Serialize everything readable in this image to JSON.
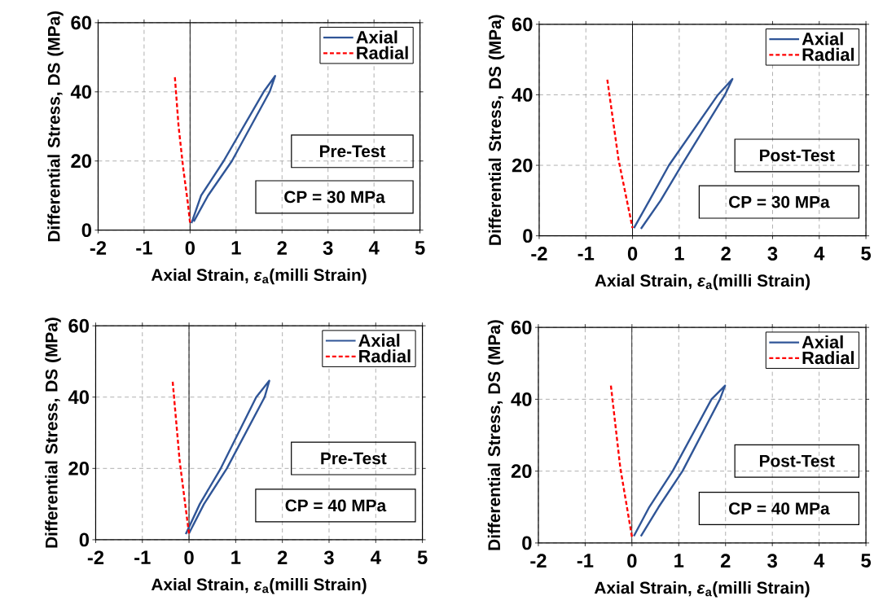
{
  "chart_data": [
    {
      "type": "line",
      "xlabel": "Axial Strain, *ε*$_{a}$(milli Strain)",
      "ylabel": "Differential Stress, DS (MPa)",
      "xlim": [
        -2,
        5
      ],
      "ylim": [
        0,
        60
      ],
      "xticks": [
        -2,
        -1,
        0,
        1,
        2,
        3,
        4,
        5
      ],
      "yticks": [
        0,
        20,
        40,
        60
      ],
      "grid": true,
      "legend": "top right",
      "annotations": [
        "Pre-Test",
        "CP = 30 MPa"
      ],
      "ref_lines": [
        {
          "axis": "x",
          "value": 0,
          "color": "#000000"
        }
      ],
      "series": [
        {
          "name": "Axial",
          "color": "#2f5597",
          "line_style": "solid",
          "x": [
            0.03,
            0.24,
            0.73,
            1.6,
            1.85,
            1.73,
            0.91,
            0.39,
            0.08
          ],
          "values": [
            2,
            10,
            20,
            40,
            44.6,
            40,
            20,
            10,
            2.5
          ]
        },
        {
          "name": "Radial",
          "color": "#ff0000",
          "line_style": "dashed",
          "x": [
            -0.33,
            -0.25,
            -0.15,
            -0.05,
            0
          ],
          "values": [
            44.2,
            30,
            18,
            8,
            2
          ]
        }
      ]
    },
    {
      "type": "line",
      "xlabel": "Axial Strain, *ε*$_{a}$(milli Strain)",
      "ylabel": "Differential Stress, DS (MPa)",
      "xlim": [
        -2,
        5
      ],
      "ylim": [
        0,
        60
      ],
      "xticks": [
        -2,
        -1,
        0,
        1,
        2,
        3,
        4,
        5
      ],
      "yticks": [
        0,
        20,
        40,
        60
      ],
      "grid": true,
      "legend": "top right",
      "annotations": [
        "Post-Test",
        "CP = 30 MPa"
      ],
      "ref_lines": [
        {
          "axis": "x",
          "value": 0,
          "color": "#000000"
        }
      ],
      "series": [
        {
          "name": "Axial",
          "color": "#2f5597",
          "line_style": "solid",
          "x": [
            0.03,
            0.36,
            0.78,
            1.83,
            2.14,
            1.98,
            1.05,
            0.6,
            0.18
          ],
          "values": [
            2.2,
            10,
            20,
            40,
            44.5,
            40,
            20,
            10,
            2
          ]
        },
        {
          "name": "Radial",
          "color": "#ff0000",
          "line_style": "dashed",
          "x": [
            -0.54,
            -0.3,
            0
          ],
          "values": [
            44.3,
            21.6,
            2.2
          ]
        }
      ]
    },
    {
      "type": "line",
      "xlabel": "Axial Strain, *ε*$_{a}$(milli Strain)",
      "ylabel": "Differential Stress, DS (MPa)",
      "xlim": [
        -2,
        5
      ],
      "ylim": [
        0,
        60
      ],
      "xticks": [
        -2,
        -1,
        0,
        1,
        2,
        3,
        4,
        5
      ],
      "yticks": [
        0,
        20,
        40,
        60
      ],
      "grid": true,
      "legend": "top right",
      "annotations": [
        "Pre-Test",
        "CP = 40 MPa"
      ],
      "ref_lines": [
        {
          "axis": "x",
          "value": 0,
          "color": "#000000"
        }
      ],
      "series": [
        {
          "name": "Axial",
          "color": "#2f5597",
          "line_style": "solid",
          "x": [
            -0.07,
            0.23,
            0.68,
            1.44,
            1.72,
            1.62,
            0.81,
            0.32,
            0
          ],
          "values": [
            1.6,
            10,
            20,
            40,
            44.6,
            40,
            20,
            10,
            1.8
          ]
        },
        {
          "name": "Radial",
          "color": "#ff0000",
          "line_style": "dashed",
          "x": [
            -0.35,
            -0.2,
            0
          ],
          "values": [
            44.3,
            22,
            1.6
          ]
        }
      ]
    },
    {
      "type": "line",
      "xlabel": "Axial Strain, *ε*$_{a}$(milli Strain)",
      "ylabel": "Differential Stress, DS (MPa)",
      "xlim": [
        -2,
        5
      ],
      "ylim": [
        0,
        60
      ],
      "xticks": [
        -2,
        -1,
        0,
        1,
        2,
        3,
        4,
        5
      ],
      "yticks": [
        0,
        20,
        40,
        60
      ],
      "grid": true,
      "legend": "top right",
      "annotations": [
        "Post-Test",
        "CP = 40 MPa"
      ],
      "ref_lines": [
        {
          "axis": "x",
          "value": 0,
          "color": "#000000"
        }
      ],
      "series": [
        {
          "name": "Axial",
          "color": "#2f5597",
          "line_style": "solid",
          "x": [
            0.04,
            0.37,
            0.87,
            1.7,
            1.99,
            1.88,
            1.08,
            0.57,
            0.19
          ],
          "values": [
            1.9,
            10,
            20,
            40,
            43.8,
            40,
            20,
            10,
            1.9
          ]
        },
        {
          "name": "Radial",
          "color": "#ff0000",
          "line_style": "dashed",
          "x": [
            -0.45,
            -0.25,
            0
          ],
          "values": [
            43.8,
            21,
            1.7
          ]
        }
      ]
    }
  ]
}
